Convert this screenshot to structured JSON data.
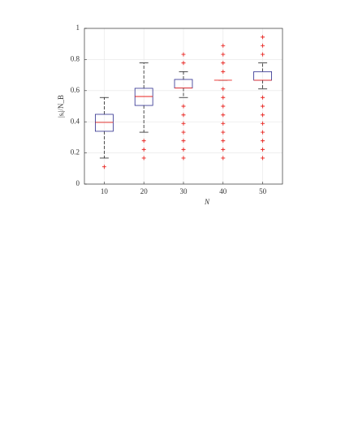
{
  "chart_data": {
    "type": "box",
    "x": [
      10,
      20,
      30,
      40,
      50
    ],
    "xlim": [
      5,
      55
    ],
    "xticks": [
      10,
      20,
      30,
      40,
      50
    ],
    "ylim": [
      0,
      1
    ],
    "yticks": [
      0,
      0.2,
      0.4,
      0.6,
      0.8,
      1
    ],
    "xlabel": "N",
    "ylabel": "|sᵢ|/N_B",
    "grid": true,
    "box_color": "#2a2a8c",
    "median_color": "#e8231f",
    "whisker_color": "#222222",
    "outlier_color": "#e8231f",
    "whisker_low": [
      0.167,
      0.333,
      0.556,
      0.667,
      0.611
    ],
    "q1": [
      0.339,
      0.505,
      0.617,
      0.667,
      0.667
    ],
    "median": [
      0.396,
      0.5625,
      0.617,
      0.667,
      0.667
    ],
    "q3": [
      0.448,
      0.615,
      0.672,
      0.667,
      0.722
    ],
    "whisker_high": [
      0.556,
      0.778,
      0.722,
      0.667,
      0.778
    ],
    "outliers": [
      [
        0.111
      ],
      [
        0.278,
        0.222,
        0.167
      ],
      [
        0.833,
        0.778,
        0.5,
        0.444,
        0.389,
        0.333,
        0.278,
        0.222,
        0.167
      ],
      [
        0.889,
        0.833,
        0.778,
        0.722,
        0.611,
        0.556,
        0.5,
        0.444,
        0.389,
        0.333,
        0.278,
        0.222,
        0.167
      ],
      [
        0.944,
        0.889,
        0.833,
        0.556,
        0.5,
        0.444,
        0.389,
        0.333,
        0.278,
        0.222,
        0.167
      ]
    ]
  }
}
